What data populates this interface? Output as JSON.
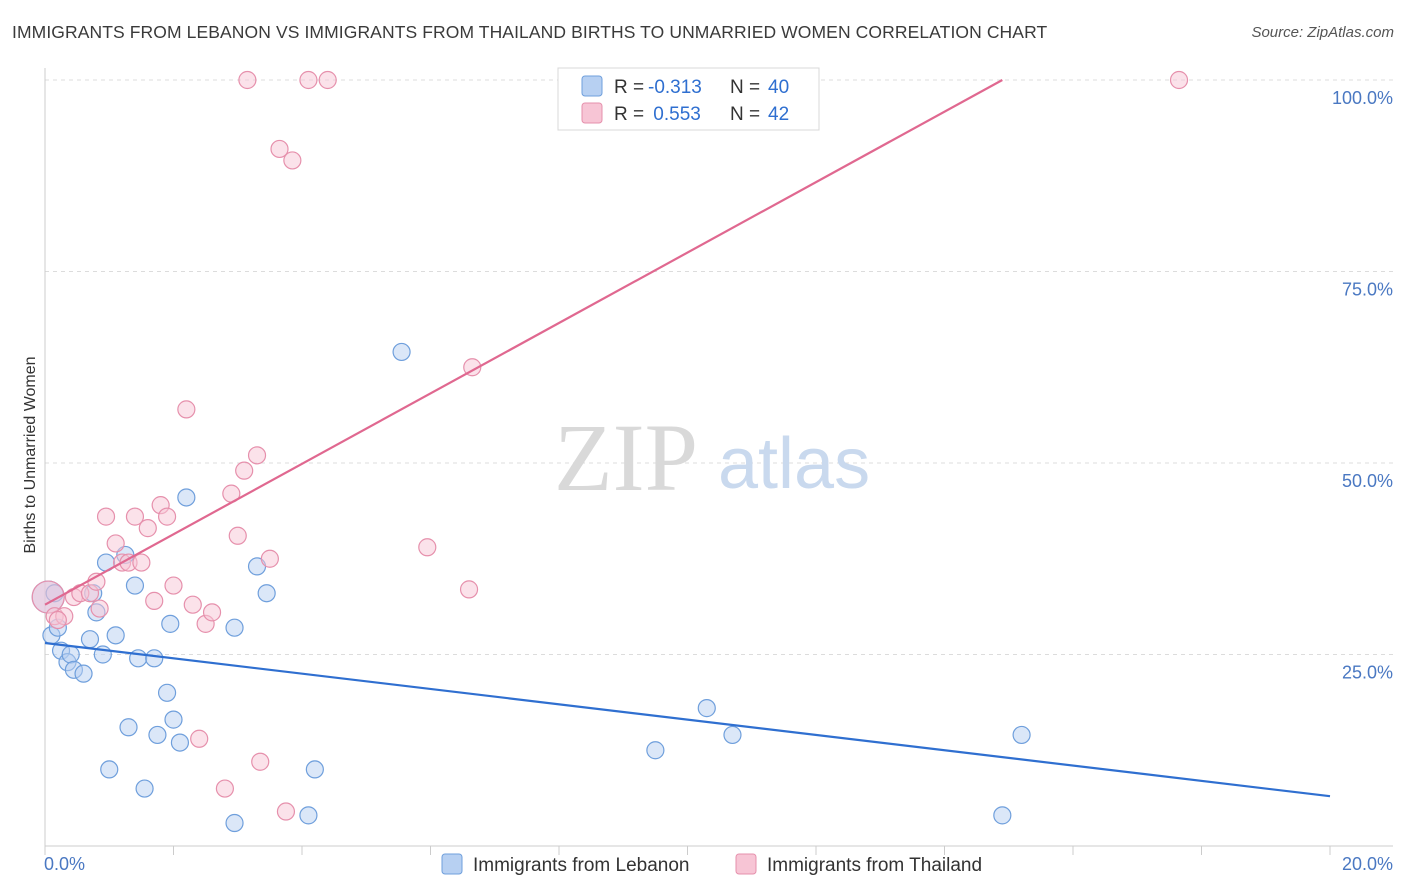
{
  "title": "IMMIGRANTS FROM LEBANON VS IMMIGRANTS FROM THAILAND BIRTHS TO UNMARRIED WOMEN CORRELATION CHART",
  "source": "Source: ZipAtlas.com",
  "watermark": {
    "zip": "ZIP",
    "atlas": "atlas"
  },
  "colors": {
    "lebanon_fill": "#b7d0f2",
    "lebanon_stroke": "#6f9fdc",
    "lebanon_line": "#2f6fd0",
    "thailand_fill": "#f7c5d5",
    "thailand_stroke": "#e690ac",
    "thailand_line": "#e06890",
    "tick": "#4a78c2",
    "grid": "#dcdcdc"
  },
  "legend": {
    "rows": [
      {
        "r_label": "R =",
        "r_value": "-0.313",
        "n_label": "N =",
        "n_value": "40"
      },
      {
        "r_label": "R =",
        "r_value": " 0.553",
        "n_label": "N =",
        "n_value": "42"
      }
    ]
  },
  "chart_data": {
    "type": "scatter",
    "title": "IMMIGRANTS FROM LEBANON VS IMMIGRANTS FROM THAILAND BIRTHS TO UNMARRIED WOMEN CORRELATION CHART",
    "xlabel": "",
    "ylabel": "Births to Unmarried Women",
    "xlim": [
      0,
      20
    ],
    "ylim": [
      0,
      100
    ],
    "x_ticks": [
      "0.0%",
      "20.0%"
    ],
    "y_ticks": [
      "25.0%",
      "50.0%",
      "75.0%",
      "100.0%"
    ],
    "y_tick_values": [
      25,
      50,
      75,
      100
    ],
    "grid": true,
    "legend_placement": "top-center",
    "series": [
      {
        "name": "Immigrants from Lebanon",
        "r": -0.313,
        "n": 40,
        "trend": {
          "x": [
            0,
            20
          ],
          "y": [
            26.5,
            6.5
          ]
        },
        "points": [
          [
            0.05,
            32.5
          ],
          [
            0.1,
            27.5
          ],
          [
            0.2,
            28.5
          ],
          [
            0.25,
            25.5
          ],
          [
            0.35,
            24
          ],
          [
            0.4,
            25
          ],
          [
            0.45,
            23
          ],
          [
            0.6,
            22.5
          ],
          [
            0.7,
            27
          ],
          [
            0.75,
            33
          ],
          [
            0.8,
            30.5
          ],
          [
            0.9,
            25
          ],
          [
            0.95,
            37
          ],
          [
            1.0,
            10
          ],
          [
            1.1,
            27.5
          ],
          [
            1.25,
            38
          ],
          [
            1.3,
            15.5
          ],
          [
            1.4,
            34
          ],
          [
            1.45,
            24.5
          ],
          [
            1.55,
            7.5
          ],
          [
            1.7,
            24.5
          ],
          [
            1.75,
            14.5
          ],
          [
            1.9,
            20
          ],
          [
            1.95,
            29
          ],
          [
            2.0,
            16.5
          ],
          [
            2.1,
            13.5
          ],
          [
            2.2,
            45.5
          ],
          [
            2.95,
            3
          ],
          [
            2.95,
            28.5
          ],
          [
            3.3,
            36.5
          ],
          [
            3.45,
            33
          ],
          [
            4.1,
            4
          ],
          [
            4.2,
            10
          ],
          [
            5.55,
            64.5
          ],
          [
            9.5,
            12.5
          ],
          [
            10.3,
            18
          ],
          [
            10.7,
            14.5
          ],
          [
            14.9,
            4
          ],
          [
            15.2,
            14.5
          ],
          [
            0.15,
            33
          ]
        ]
      },
      {
        "name": "Immigrants from Thailand",
        "r": 0.553,
        "n": 42,
        "trend": {
          "x": [
            0,
            14.9
          ],
          "y": [
            31.5,
            100
          ]
        },
        "points": [
          [
            0.05,
            32.5
          ],
          [
            0.15,
            30
          ],
          [
            0.3,
            30
          ],
          [
            0.45,
            32.5
          ],
          [
            0.55,
            33
          ],
          [
            0.7,
            33
          ],
          [
            0.8,
            34.5
          ],
          [
            0.85,
            31
          ],
          [
            0.95,
            43
          ],
          [
            1.1,
            39.5
          ],
          [
            1.2,
            37
          ],
          [
            1.3,
            37
          ],
          [
            1.4,
            43
          ],
          [
            1.5,
            37
          ],
          [
            1.6,
            41.5
          ],
          [
            1.7,
            32
          ],
          [
            1.8,
            44.5
          ],
          [
            1.9,
            43
          ],
          [
            2.0,
            34
          ],
          [
            2.2,
            57
          ],
          [
            2.3,
            31.5
          ],
          [
            2.4,
            14
          ],
          [
            2.5,
            29
          ],
          [
            2.6,
            30.5
          ],
          [
            2.8,
            7.5
          ],
          [
            2.9,
            46
          ],
          [
            3.0,
            40.5
          ],
          [
            3.1,
            49
          ],
          [
            3.15,
            100
          ],
          [
            3.3,
            51
          ],
          [
            3.35,
            11
          ],
          [
            3.5,
            37.5
          ],
          [
            3.65,
            91
          ],
          [
            3.75,
            4.5
          ],
          [
            3.85,
            89.5
          ],
          [
            4.1,
            100
          ],
          [
            4.4,
            100
          ],
          [
            5.95,
            39
          ],
          [
            6.6,
            33.5
          ],
          [
            6.65,
            62.5
          ],
          [
            17.65,
            100
          ],
          [
            0.2,
            29.5
          ]
        ]
      }
    ]
  }
}
